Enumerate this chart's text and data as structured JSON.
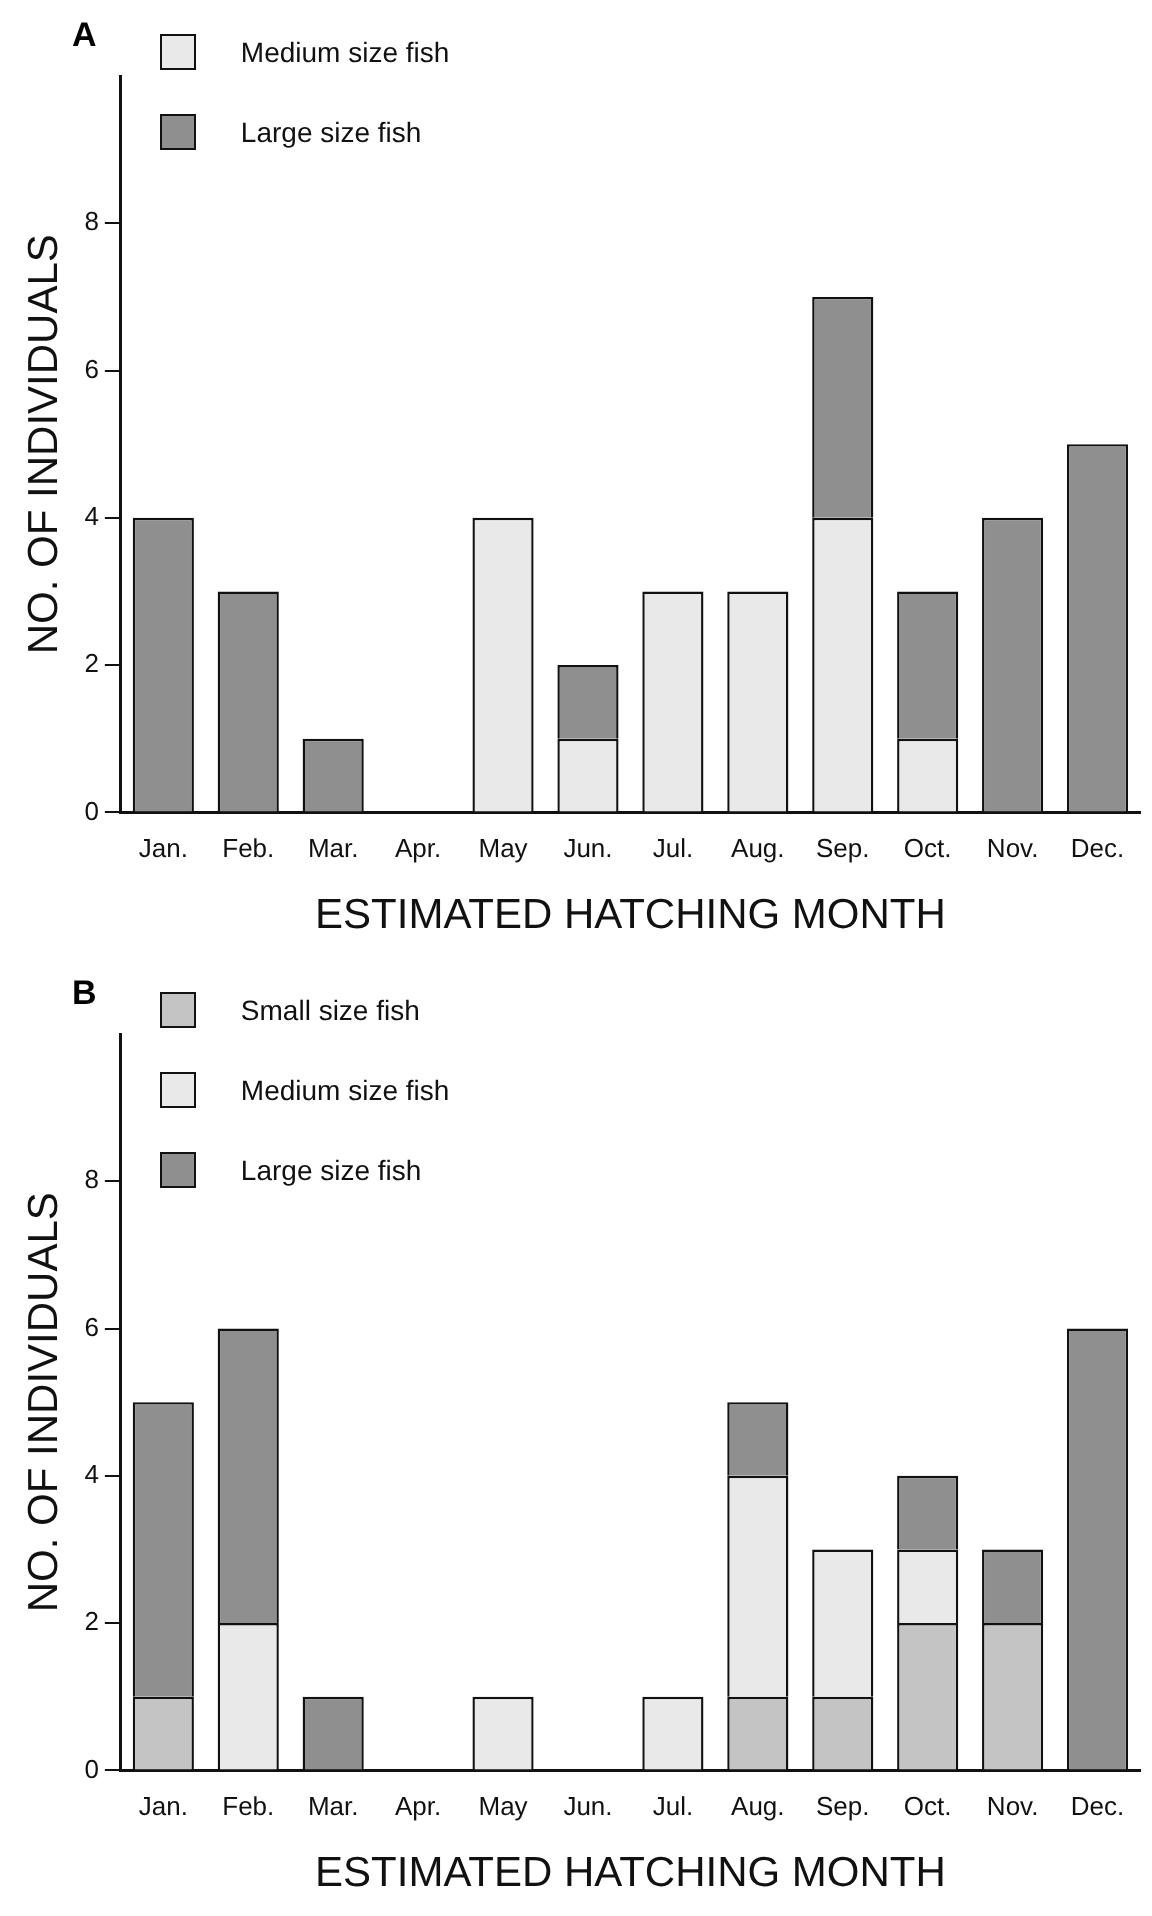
{
  "chart_data": [
    {
      "type": "bar",
      "title": "A",
      "xlabel": "ESTIMATED HATCHING MONTH",
      "ylabel": "NO. OF INDIVIDUALS",
      "stacked": true,
      "legend": "top left",
      "grid": false,
      "categories": [
        "Jan.",
        "Feb.",
        "Mar.",
        "Apr.",
        "May",
        "Jun.",
        "Jul.",
        "Aug.",
        "Sep.",
        "Oct.",
        "Nov.",
        "Dec."
      ],
      "ylim": [
        0,
        10
      ],
      "yticks": [
        0,
        2,
        4,
        6,
        8
      ],
      "series": [
        {
          "name": "Medium size fish",
          "color": "#e9e9e9",
          "values": [
            0,
            0,
            0,
            0,
            4,
            1,
            3,
            3,
            4,
            1,
            0,
            0
          ]
        },
        {
          "name": "Large size fish",
          "color": "#8f8f8f",
          "values": [
            4,
            3,
            1,
            0,
            0,
            1,
            0,
            0,
            3,
            2,
            4,
            5
          ]
        }
      ]
    },
    {
      "type": "bar",
      "title": "B",
      "xlabel": "ESTIMATED HATCHING MONTH",
      "ylabel": "NO. OF INDIVIDUALS",
      "stacked": true,
      "legend": "top left",
      "grid": false,
      "categories": [
        "Jan.",
        "Feb.",
        "Mar.",
        "Apr.",
        "May",
        "Jun.",
        "Jul.",
        "Aug.",
        "Sep.",
        "Oct.",
        "Nov.",
        "Dec."
      ],
      "ylim": [
        0,
        10
      ],
      "yticks": [
        0,
        2,
        4,
        6,
        8
      ],
      "series": [
        {
          "name": "Small size fish",
          "color": "#c4c4c4",
          "values": [
            1,
            0,
            0,
            0,
            0,
            0,
            0,
            1,
            1,
            2,
            2,
            0
          ]
        },
        {
          "name": "Medium size fish",
          "color": "#e9e9e9",
          "values": [
            0,
            2,
            0,
            0,
            1,
            0,
            1,
            3,
            2,
            1,
            0,
            0
          ]
        },
        {
          "name": "Large size fish",
          "color": "#8f8f8f",
          "values": [
            4,
            4,
            1,
            0,
            0,
            0,
            0,
            1,
            0,
            1,
            1,
            6
          ]
        }
      ]
    }
  ]
}
